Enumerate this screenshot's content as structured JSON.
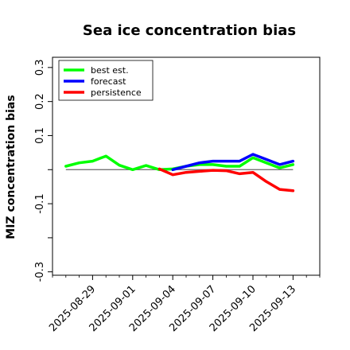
{
  "chart_data": {
    "type": "line",
    "title": "Sea ice concentration bias",
    "xlabel": "",
    "ylabel": "MIZ concentration bias",
    "ylim": [
      -0.31,
      0.33
    ],
    "yticks": [
      -0.3,
      -0.1,
      0.1,
      0.2,
      0.3
    ],
    "ytick_labels": [
      "-0.3",
      "-0.1",
      "0.1",
      "0.2",
      "0.3"
    ],
    "yticks_minor": [
      -0.2,
      0.0
    ],
    "xlim": [
      "2025-08-26",
      "2025-09-15"
    ],
    "xticks": [
      "2025-08-29",
      "2025-09-01",
      "2025-09-04",
      "2025-09-07",
      "2025-09-10",
      "2025-09-13"
    ],
    "highlighted_xtick": "2025-09-04",
    "highlight_color": "#228b22",
    "grid": false,
    "legend_position": "upper-left",
    "reference_line": {
      "y": 0.0,
      "color": "#666666"
    },
    "series": [
      {
        "name": "best est.",
        "color": "#00ff00",
        "x": [
          "2025-08-27",
          "2025-08-28",
          "2025-08-29",
          "2025-08-30",
          "2025-08-31",
          "2025-09-01",
          "2025-09-02",
          "2025-09-03",
          "2025-09-04",
          "2025-09-05",
          "2025-09-06",
          "2025-09-07",
          "2025-09-08",
          "2025-09-09",
          "2025-09-10",
          "2025-09-11",
          "2025-09-12",
          "2025-09-13"
        ],
        "values": [
          0.01,
          0.02,
          0.025,
          0.04,
          0.013,
          0.0,
          0.012,
          0.0,
          0.002,
          0.01,
          0.015,
          0.015,
          0.01,
          0.01,
          0.035,
          0.02,
          0.005,
          0.015
        ]
      },
      {
        "name": "forecast",
        "color": "#0000ff",
        "x": [
          "2025-09-04",
          "2025-09-05",
          "2025-09-06",
          "2025-09-07",
          "2025-09-08",
          "2025-09-09",
          "2025-09-10",
          "2025-09-11",
          "2025-09-12",
          "2025-09-13"
        ],
        "values": [
          0.0,
          0.01,
          0.02,
          0.025,
          0.025,
          0.025,
          0.045,
          0.03,
          0.015,
          0.025
        ]
      },
      {
        "name": "persistence",
        "color": "#ff0000",
        "x": [
          "2025-09-03",
          "2025-09-04",
          "2025-09-05",
          "2025-09-06",
          "2025-09-07",
          "2025-09-08",
          "2025-09-09",
          "2025-09-10",
          "2025-09-11",
          "2025-09-12",
          "2025-09-13"
        ],
        "values": [
          0.002,
          -0.015,
          -0.008,
          -0.005,
          -0.002,
          -0.003,
          -0.012,
          -0.008,
          -0.035,
          -0.058,
          -0.062
        ]
      }
    ]
  }
}
